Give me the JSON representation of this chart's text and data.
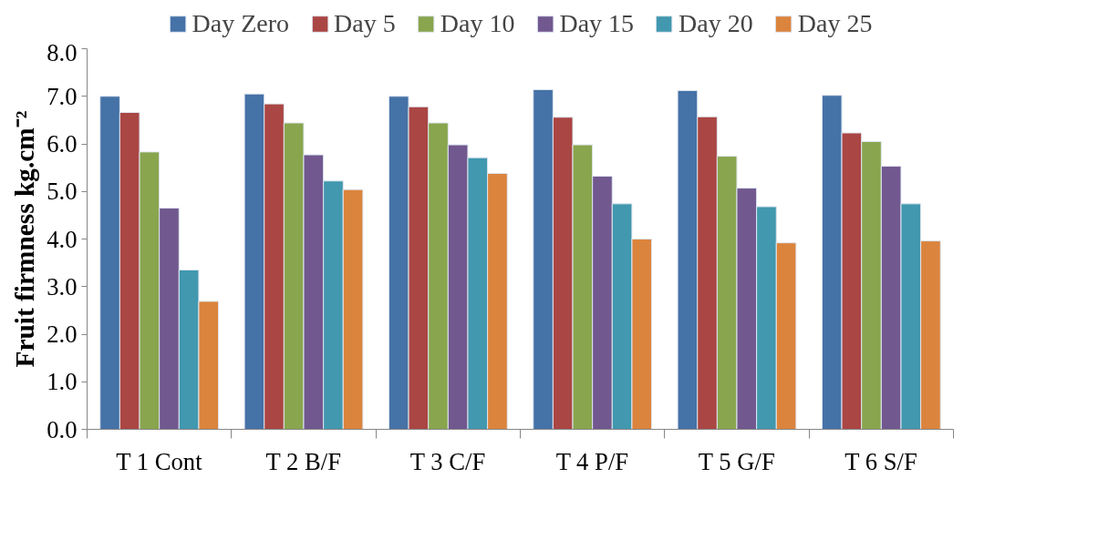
{
  "chart_data": {
    "type": "bar",
    "ylabel": "Fruit firmness kg.cm⁻²",
    "categories": [
      "T 1 Cont",
      "T 2 B/F",
      "T 3 C/F",
      "T 4 P/F",
      "T 5 G/F",
      "T 6 S/F"
    ],
    "series": [
      {
        "name": "Day Zero",
        "color": "#4572a7",
        "values": [
          7.0,
          7.05,
          7.0,
          7.14,
          7.12,
          7.02
        ]
      },
      {
        "name": "Day 5",
        "color": "#aa4643",
        "values": [
          6.66,
          6.84,
          6.78,
          6.56,
          6.57,
          6.23
        ]
      },
      {
        "name": "Day 10",
        "color": "#89a54e",
        "values": [
          5.83,
          6.44,
          6.44,
          5.98,
          5.74,
          6.05
        ]
      },
      {
        "name": "Day 15",
        "color": "#71588f",
        "values": [
          4.65,
          5.77,
          5.98,
          5.32,
          5.07,
          5.53
        ]
      },
      {
        "name": "Day 20",
        "color": "#4198af",
        "values": [
          3.35,
          5.22,
          5.71,
          4.74,
          4.68,
          4.74
        ]
      },
      {
        "name": "Day 25",
        "color": "#db843d",
        "values": [
          2.69,
          5.04,
          5.38,
          4.0,
          3.92,
          3.96
        ]
      }
    ],
    "ylim": [
      0,
      8
    ],
    "yticks": [
      {
        "value": 0,
        "label": "0.0"
      },
      {
        "value": 1,
        "label": "1.0"
      },
      {
        "value": 2,
        "label": "2.0"
      },
      {
        "value": 3,
        "label": "3.0"
      },
      {
        "value": 4,
        "label": "4.0"
      },
      {
        "value": 5,
        "label": "5.0"
      },
      {
        "value": 6,
        "label": "6.0"
      },
      {
        "value": 7,
        "label": "7.0"
      },
      {
        "value": 8,
        "label": "8.0"
      }
    ],
    "grid": false,
    "legend": "top"
  }
}
